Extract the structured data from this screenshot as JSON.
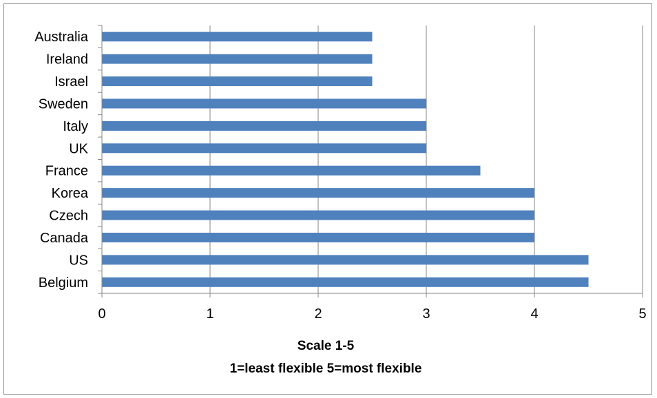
{
  "chart_data": {
    "type": "bar",
    "orientation": "horizontal",
    "categories": [
      "Australia",
      "Ireland",
      "Israel",
      "Sweden",
      "Italy",
      "UK",
      "France",
      "Korea",
      "Czech",
      "Canada",
      "US",
      "Belgium"
    ],
    "values": [
      2.5,
      2.5,
      2.5,
      3,
      3,
      3,
      3.5,
      4,
      4,
      4,
      4.5,
      4.5
    ],
    "xlim": [
      0,
      5
    ],
    "xticks": [
      0,
      1,
      2,
      3,
      4,
      5
    ],
    "xlabel": [
      "Scale 1-5",
      "1=least flexible 5=most flexible"
    ],
    "ylabel": "",
    "title": "",
    "grid": "vertical",
    "legend": "none",
    "bar_color": "#4f81bd",
    "grid_color": "#868686"
  }
}
